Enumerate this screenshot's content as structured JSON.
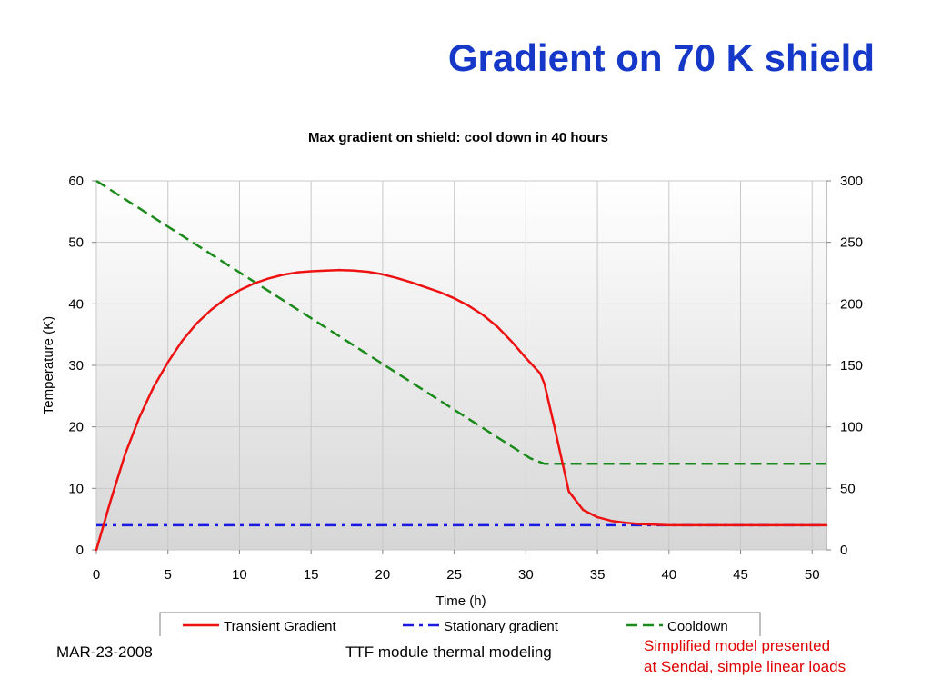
{
  "slide": {
    "title": "Gradient on 70 K shield"
  },
  "footer": {
    "date": "MAR-23-2008",
    "center": "TTF module thermal modeling",
    "note_line1": "Simplified model presented",
    "note_line2": "at Sendai, simple linear loads"
  },
  "colors": {
    "title": "#1538c9",
    "transient": "#ee1111",
    "stationary": "#1a1ae0",
    "cooldown": "#1a8a1a",
    "note": "#e00000"
  },
  "chart_data": {
    "type": "line",
    "title": "Max gradient on shield: cool down in 40 hours",
    "xlabel": "Time (h)",
    "ylabel": "Temperature (K)",
    "y2label": "",
    "xlim": [
      0,
      51
    ],
    "ylim": [
      0,
      60
    ],
    "y2lim": [
      0,
      300
    ],
    "xticks": [
      0,
      5,
      10,
      15,
      20,
      25,
      30,
      35,
      40,
      45,
      50
    ],
    "yticks": [
      0,
      10,
      20,
      30,
      40,
      50,
      60
    ],
    "y2ticks": [
      0,
      50,
      100,
      150,
      200,
      250,
      300
    ],
    "grid": true,
    "legend_position": "bottom",
    "series": [
      {
        "name": "Transient Gradient",
        "axis": "left",
        "style": "solid",
        "x": [
          0,
          1,
          2,
          3,
          4,
          5,
          6,
          7,
          8,
          9,
          10,
          11,
          12,
          13,
          14,
          15,
          16,
          17,
          18,
          19,
          20,
          21,
          22,
          23,
          24,
          25,
          26,
          27,
          28,
          29,
          30,
          31,
          31.3,
          32,
          33,
          34,
          35,
          36,
          37,
          38,
          39,
          40,
          45,
          51
        ],
        "y": [
          0,
          8,
          15.5,
          21.5,
          26.5,
          30.5,
          34,
          36.8,
          39,
          40.8,
          42.2,
          43.3,
          44.1,
          44.7,
          45.1,
          45.3,
          45.4,
          45.5,
          45.4,
          45.2,
          44.8,
          44.2,
          43.5,
          42.7,
          41.9,
          40.9,
          39.7,
          38.2,
          36.3,
          33.9,
          31.2,
          28.7,
          27,
          20,
          9.5,
          6.5,
          5.3,
          4.7,
          4.4,
          4.2,
          4.1,
          4,
          4,
          4
        ]
      },
      {
        "name": "Stationary gradient",
        "axis": "left",
        "style": "dashdot",
        "x": [
          0,
          51
        ],
        "y": [
          4,
          4
        ]
      },
      {
        "name": "Cooldown",
        "axis": "right",
        "style": "dashed",
        "x": [
          0,
          30.3,
          31.3,
          51
        ],
        "y": [
          300,
          74.5,
          70,
          70
        ]
      }
    ]
  }
}
